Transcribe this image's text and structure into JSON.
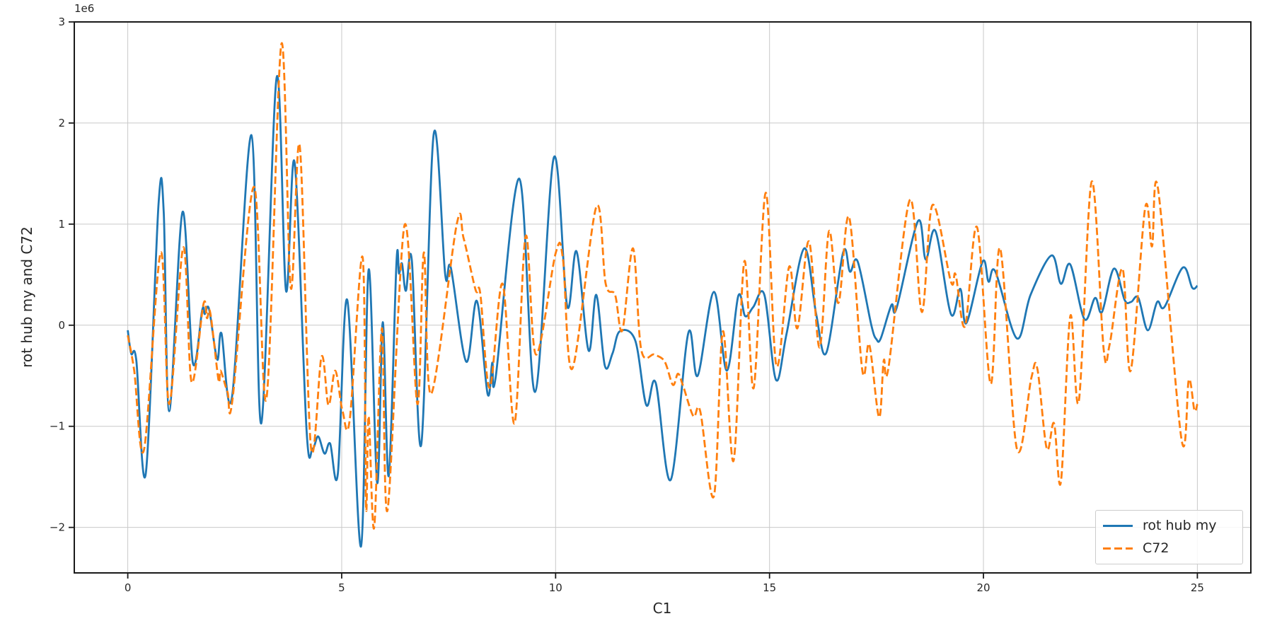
{
  "background_color": "#ffffff",
  "chart_data": {
    "type": "line",
    "title": "",
    "xlabel": "C1",
    "ylabel": "rot hub my and C72",
    "y_offset_label": "1e6",
    "y_unit_scale": 1000000,
    "grid": true,
    "xlim": [
      -1.25,
      26.25
    ],
    "ylim": [
      -2.45,
      3.0
    ],
    "x_ticks": [
      0,
      5,
      10,
      15,
      20,
      25
    ],
    "x_tick_labels": [
      "0",
      "5",
      "10",
      "15",
      "20",
      "25"
    ],
    "y_ticks": [
      -2,
      -1,
      0,
      1,
      2,
      3
    ],
    "y_tick_labels": [
      "−2",
      "−1",
      "0",
      "1",
      "2",
      "3"
    ],
    "grid_color": "#c9c9c9",
    "spine_color": "#1a1a1a",
    "tick_text_color": "#262626",
    "legend": {
      "position": "lower right",
      "entries": [
        "rot hub my",
        "C72"
      ]
    },
    "series": [
      {
        "name": "rot hub my",
        "color": "#1f77b4",
        "style": "solid",
        "points": [
          [
            0.0,
            -0.05
          ],
          [
            0.08,
            -0.28
          ],
          [
            0.2,
            -0.35
          ],
          [
            0.42,
            -1.47
          ],
          [
            0.72,
            1.2
          ],
          [
            0.84,
            1.12
          ],
          [
            0.97,
            -0.85
          ],
          [
            1.28,
            1.12
          ],
          [
            1.52,
            -0.37
          ],
          [
            1.74,
            0.15
          ],
          [
            1.8,
            0.11
          ],
          [
            1.9,
            0.16
          ],
          [
            2.09,
            -0.34
          ],
          [
            2.19,
            -0.08
          ],
          [
            2.44,
            -0.7
          ],
          [
            2.89,
            1.88
          ],
          [
            3.12,
            -0.97
          ],
          [
            3.48,
            2.45
          ],
          [
            3.7,
            0.34
          ],
          [
            3.9,
            1.61
          ],
          [
            4.18,
            -1.05
          ],
          [
            4.32,
            -1.22
          ],
          [
            4.45,
            -1.1
          ],
          [
            4.6,
            -1.27
          ],
          [
            4.73,
            -1.17
          ],
          [
            4.91,
            -1.47
          ],
          [
            5.13,
            0.25
          ],
          [
            5.45,
            -2.19
          ],
          [
            5.63,
            0.55
          ],
          [
            5.83,
            -1.56
          ],
          [
            5.96,
            0.03
          ],
          [
            6.1,
            -1.49
          ],
          [
            6.28,
            0.62
          ],
          [
            6.34,
            0.51
          ],
          [
            6.41,
            0.61
          ],
          [
            6.5,
            0.34
          ],
          [
            6.64,
            0.64
          ],
          [
            6.86,
            -1.18
          ],
          [
            7.15,
            1.89
          ],
          [
            7.42,
            0.5
          ],
          [
            7.55,
            0.57
          ],
          [
            7.91,
            -0.36
          ],
          [
            8.16,
            0.24
          ],
          [
            8.41,
            -0.68
          ],
          [
            8.52,
            -0.37
          ],
          [
            8.6,
            -0.51
          ],
          [
            9.15,
            1.45
          ],
          [
            9.52,
            -0.66
          ],
          [
            9.96,
            1.66
          ],
          [
            10.27,
            0.19
          ],
          [
            10.49,
            0.73
          ],
          [
            10.77,
            -0.25
          ],
          [
            10.95,
            0.3
          ],
          [
            11.15,
            -0.4
          ],
          [
            11.33,
            -0.28
          ],
          [
            11.5,
            -0.06
          ],
          [
            11.86,
            -0.15
          ],
          [
            12.12,
            -0.79
          ],
          [
            12.34,
            -0.57
          ],
          [
            12.69,
            -1.53
          ],
          [
            13.1,
            -0.08
          ],
          [
            13.32,
            -0.5
          ],
          [
            13.7,
            0.33
          ],
          [
            14.0,
            -0.45
          ],
          [
            14.27,
            0.29
          ],
          [
            14.43,
            0.09
          ],
          [
            14.62,
            0.18
          ],
          [
            14.88,
            0.3
          ],
          [
            15.15,
            -0.54
          ],
          [
            15.4,
            -0.08
          ],
          [
            15.81,
            0.76
          ],
          [
            16.09,
            0.11
          ],
          [
            16.33,
            -0.27
          ],
          [
            16.72,
            0.72
          ],
          [
            16.88,
            0.53
          ],
          [
            17.06,
            0.63
          ],
          [
            17.38,
            0.0
          ],
          [
            17.5,
            -0.14
          ],
          [
            17.6,
            -0.13
          ],
          [
            17.85,
            0.2
          ],
          [
            17.97,
            0.17
          ],
          [
            18.47,
            1.03
          ],
          [
            18.65,
            0.65
          ],
          [
            18.88,
            0.93
          ],
          [
            19.24,
            0.11
          ],
          [
            19.46,
            0.36
          ],
          [
            19.6,
            0.02
          ],
          [
            19.98,
            0.63
          ],
          [
            20.12,
            0.43
          ],
          [
            20.28,
            0.53
          ],
          [
            20.78,
            -0.13
          ],
          [
            21.1,
            0.3
          ],
          [
            21.59,
            0.69
          ],
          [
            21.81,
            0.41
          ],
          [
            22.03,
            0.6
          ],
          [
            22.36,
            0.06
          ],
          [
            22.61,
            0.27
          ],
          [
            22.77,
            0.13
          ],
          [
            23.05,
            0.56
          ],
          [
            23.3,
            0.25
          ],
          [
            23.45,
            0.23
          ],
          [
            23.62,
            0.27
          ],
          [
            23.84,
            -0.05
          ],
          [
            24.06,
            0.23
          ],
          [
            24.23,
            0.18
          ],
          [
            24.66,
            0.57
          ],
          [
            24.88,
            0.37
          ],
          [
            25.0,
            0.39
          ]
        ]
      },
      {
        "name": "C72",
        "color": "#ff7f0e",
        "style": "dashed",
        "points": [
          [
            0.0,
            -0.1
          ],
          [
            0.15,
            -0.45
          ],
          [
            0.38,
            -1.23
          ],
          [
            0.77,
            0.72
          ],
          [
            0.97,
            -0.78
          ],
          [
            1.3,
            0.77
          ],
          [
            1.49,
            -0.56
          ],
          [
            1.77,
            0.21
          ],
          [
            1.85,
            0.07
          ],
          [
            1.93,
            0.12
          ],
          [
            2.12,
            -0.54
          ],
          [
            2.17,
            -0.45
          ],
          [
            2.33,
            -0.66
          ],
          [
            2.45,
            -0.73
          ],
          [
            2.95,
            1.37
          ],
          [
            3.24,
            -0.73
          ],
          [
            3.59,
            2.78
          ],
          [
            3.81,
            0.37
          ],
          [
            4.02,
            1.77
          ],
          [
            4.28,
            -1.2
          ],
          [
            4.53,
            -0.31
          ],
          [
            4.69,
            -0.79
          ],
          [
            4.85,
            -0.45
          ],
          [
            5.02,
            -0.85
          ],
          [
            5.19,
            -0.93
          ],
          [
            5.49,
            0.67
          ],
          [
            5.57,
            -1.8
          ],
          [
            5.63,
            -0.9
          ],
          [
            5.76,
            -2.0
          ],
          [
            5.94,
            -0.03
          ],
          [
            6.07,
            -1.83
          ],
          [
            6.47,
            0.99
          ],
          [
            6.77,
            -0.78
          ],
          [
            6.92,
            0.72
          ],
          [
            7.09,
            -0.68
          ],
          [
            7.69,
            1.0
          ],
          [
            7.85,
            0.86
          ],
          [
            8.13,
            0.35
          ],
          [
            8.24,
            0.31
          ],
          [
            8.46,
            -0.62
          ],
          [
            8.76,
            0.41
          ],
          [
            9.04,
            -0.97
          ],
          [
            9.3,
            0.88
          ],
          [
            9.54,
            -0.29
          ],
          [
            10.0,
            0.71
          ],
          [
            10.17,
            0.66
          ],
          [
            10.39,
            -0.43
          ],
          [
            10.95,
            1.17
          ],
          [
            11.17,
            0.41
          ],
          [
            11.39,
            0.3
          ],
          [
            11.56,
            -0.05
          ],
          [
            11.81,
            0.76
          ],
          [
            12.0,
            -0.24
          ],
          [
            12.31,
            -0.29
          ],
          [
            12.55,
            -0.36
          ],
          [
            12.74,
            -0.59
          ],
          [
            12.86,
            -0.48
          ],
          [
            12.98,
            -0.6
          ],
          [
            13.22,
            -0.9
          ],
          [
            13.38,
            -0.85
          ],
          [
            13.7,
            -1.69
          ],
          [
            13.91,
            -0.06
          ],
          [
            14.16,
            -1.34
          ],
          [
            14.41,
            0.63
          ],
          [
            14.63,
            -0.62
          ],
          [
            14.91,
            1.31
          ],
          [
            15.16,
            -0.4
          ],
          [
            15.46,
            0.58
          ],
          [
            15.65,
            -0.03
          ],
          [
            15.92,
            0.83
          ],
          [
            16.17,
            -0.22
          ],
          [
            16.39,
            0.93
          ],
          [
            16.61,
            0.22
          ],
          [
            16.86,
            1.07
          ],
          [
            17.17,
            -0.45
          ],
          [
            17.33,
            -0.19
          ],
          [
            17.56,
            -0.91
          ],
          [
            17.67,
            -0.35
          ],
          [
            17.78,
            -0.42
          ],
          [
            18.28,
            1.24
          ],
          [
            18.56,
            0.13
          ],
          [
            18.81,
            1.19
          ],
          [
            19.24,
            0.43
          ],
          [
            19.35,
            0.5
          ],
          [
            19.57,
            -0.01
          ],
          [
            19.85,
            0.97
          ],
          [
            20.17,
            -0.58
          ],
          [
            20.39,
            0.76
          ],
          [
            20.78,
            -1.22
          ],
          [
            21.12,
            -0.52
          ],
          [
            21.26,
            -0.43
          ],
          [
            21.48,
            -1.22
          ],
          [
            21.65,
            -0.97
          ],
          [
            21.81,
            -1.55
          ],
          [
            22.03,
            0.09
          ],
          [
            22.23,
            -0.75
          ],
          [
            22.53,
            1.42
          ],
          [
            22.81,
            -0.24
          ],
          [
            22.95,
            -0.19
          ],
          [
            23.25,
            0.56
          ],
          [
            23.44,
            -0.45
          ],
          [
            23.78,
            1.16
          ],
          [
            23.94,
            0.78
          ],
          [
            24.08,
            1.35
          ],
          [
            24.63,
            -1.13
          ],
          [
            24.8,
            -0.54
          ],
          [
            24.93,
            -0.84
          ],
          [
            25.0,
            -0.78
          ]
        ]
      }
    ]
  }
}
